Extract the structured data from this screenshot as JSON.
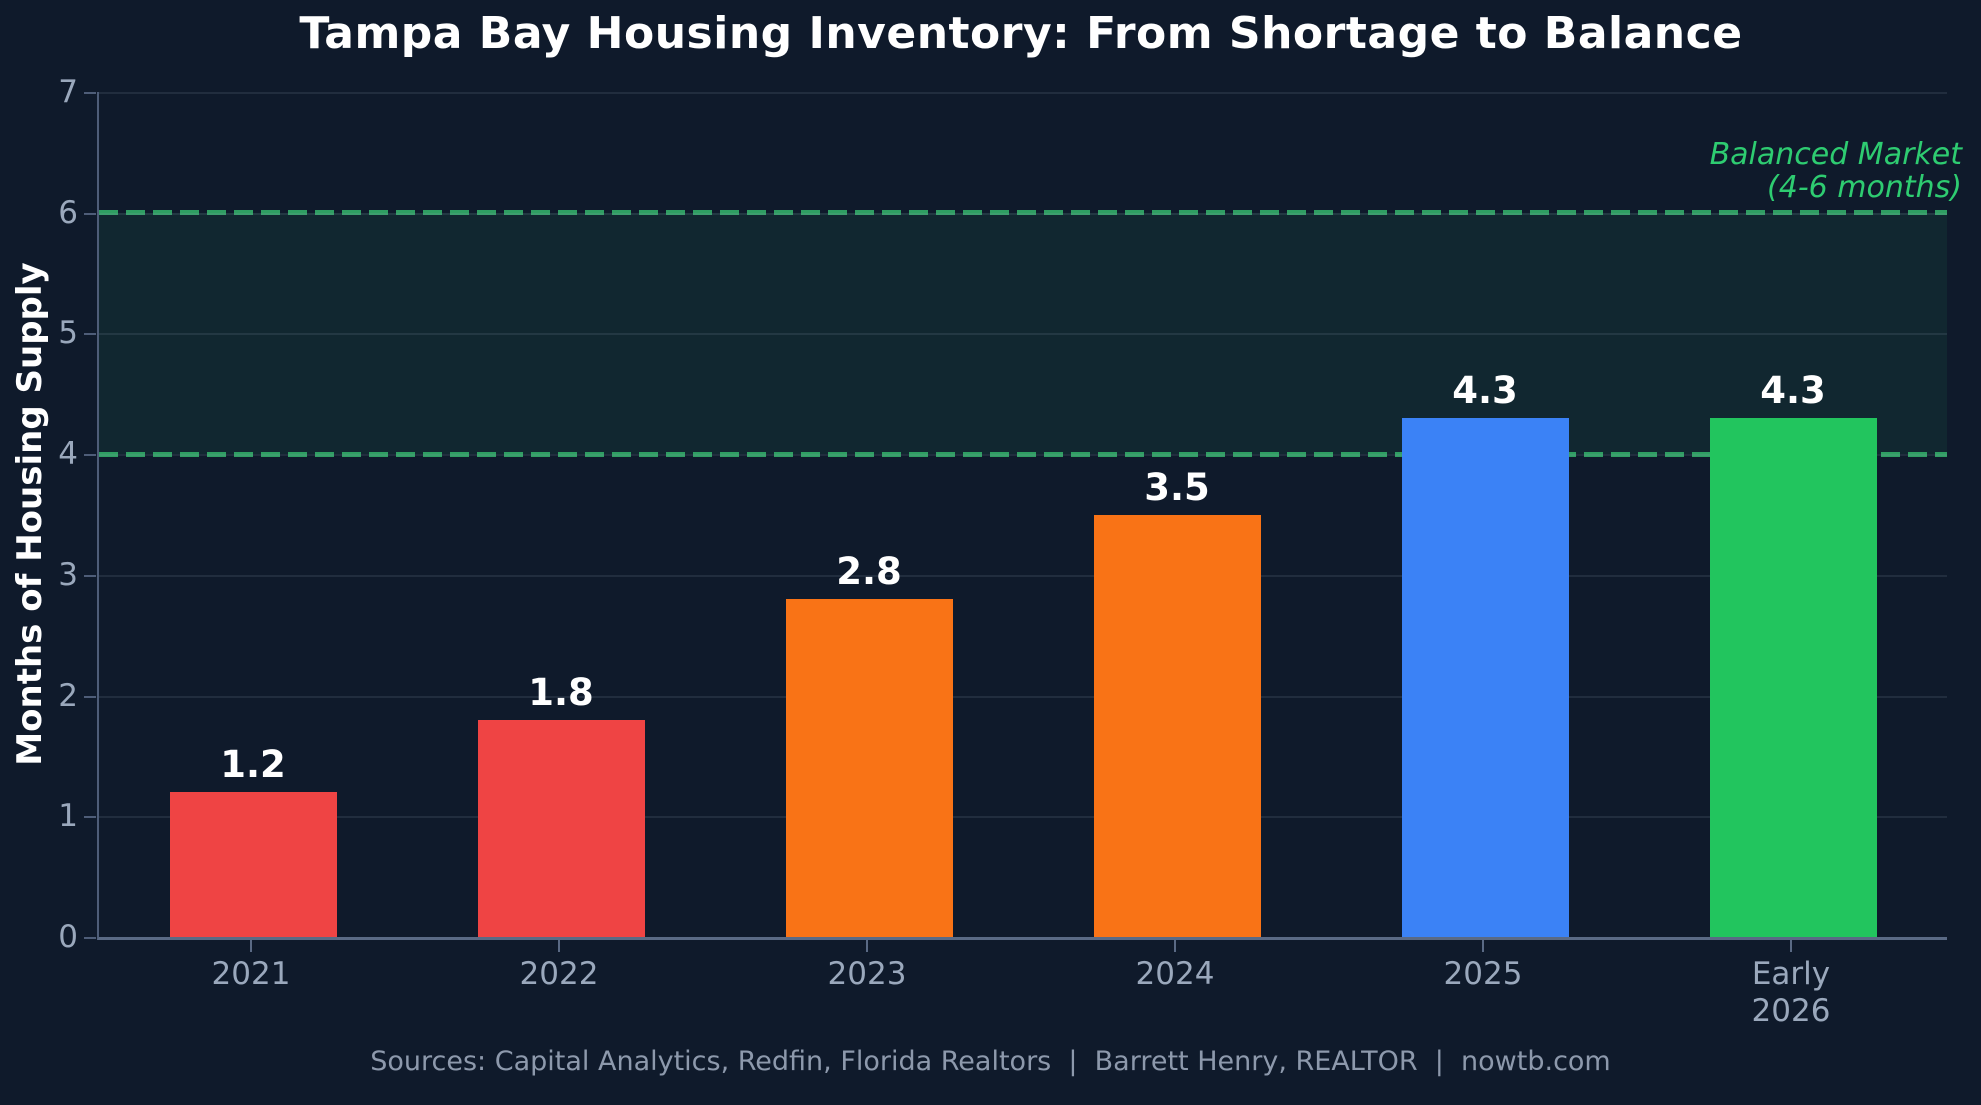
{
  "title": "Tampa Bay Housing Inventory: From Shortage to Balance",
  "y_axis_title": "Months of Housing Supply",
  "annotation": {
    "line1": "Balanced Market",
    "line2": "(4-6 months)",
    "color": "#2ecc71"
  },
  "footer": "Sources: Capital Analytics, Redfin, Florida Realtors  |  Barrett Henry, REALTOR  |  nowtb.com",
  "chart_data": {
    "type": "bar",
    "categories": [
      "2021",
      "2022",
      "2023",
      "2024",
      "2025",
      "Early\n2026"
    ],
    "values": [
      1.2,
      1.8,
      2.8,
      3.5,
      4.3,
      4.3
    ],
    "bar_colors": [
      "#ef4444",
      "#ef4444",
      "#f97316",
      "#f97316",
      "#3b82f6",
      "#22c55e"
    ],
    "value_label_color": "#ffffff",
    "title": "Tampa Bay Housing Inventory: From Shortage to Balance",
    "xlabel": "",
    "ylabel": "Months of Housing Supply",
    "ylim": [
      0,
      7
    ],
    "yticks": [
      0,
      1,
      2,
      3,
      4,
      5,
      6,
      7
    ],
    "grid": true,
    "legend": "none",
    "background": "#0f1a2b",
    "reference_band": {
      "from": 4,
      "to": 6,
      "fill": "rgba(46,204,113,0.08)",
      "line_color": "#2f9e62",
      "line_style": "dashed",
      "label": "Balanced Market (4-6 months)"
    }
  }
}
